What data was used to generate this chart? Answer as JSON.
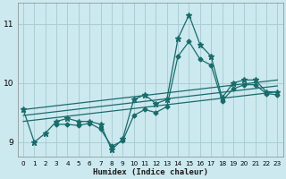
{
  "xlabel": "Humidex (Indice chaleur)",
  "bg_color": "#cce9ef",
  "grid_color": "#aacdd5",
  "line_color": "#1a6b6b",
  "xlim": [
    -0.5,
    23.5
  ],
  "ylim": [
    8.75,
    11.35
  ],
  "yticks": [
    9,
    10,
    11
  ],
  "xticks": [
    0,
    1,
    2,
    3,
    4,
    5,
    6,
    7,
    8,
    9,
    10,
    11,
    12,
    13,
    14,
    15,
    16,
    17,
    18,
    19,
    20,
    21,
    22,
    23
  ],
  "jagged_x": [
    0,
    1,
    2,
    3,
    4,
    5,
    6,
    7,
    8,
    9,
    10,
    11,
    12,
    13,
    14,
    15,
    16,
    17,
    18,
    19,
    20,
    21,
    22,
    23
  ],
  "jagged_y": [
    9.55,
    9.0,
    9.15,
    9.35,
    9.4,
    9.35,
    9.35,
    9.3,
    8.87,
    9.05,
    9.72,
    9.8,
    9.65,
    9.72,
    10.75,
    11.15,
    10.65,
    10.45,
    9.75,
    10.0,
    10.05,
    10.05,
    9.85,
    9.85
  ],
  "trend1_x": [
    0,
    23
  ],
  "trend1_y": [
    9.55,
    10.05
  ],
  "trend2_x": [
    0,
    23
  ],
  "trend2_y": [
    9.45,
    9.95
  ],
  "trend3_x": [
    0,
    23
  ],
  "trend3_y": [
    9.35,
    9.85
  ],
  "extra_x": [
    3,
    4,
    5,
    6,
    7,
    8,
    9,
    10,
    11,
    12,
    13,
    14,
    15,
    16,
    17,
    18,
    19,
    20,
    21,
    22,
    23
  ],
  "extra_y": [
    9.3,
    9.3,
    9.28,
    9.32,
    9.22,
    8.93,
    9.02,
    9.45,
    9.55,
    9.5,
    9.6,
    10.45,
    10.7,
    10.4,
    10.3,
    9.7,
    9.9,
    9.97,
    9.97,
    9.82,
    9.8
  ],
  "line_width": 0.9,
  "marker_size": 3.5
}
